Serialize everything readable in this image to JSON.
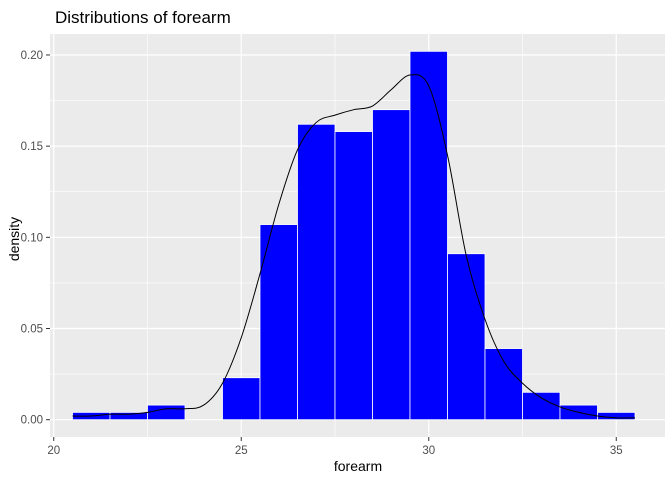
{
  "chart_data": {
    "type": "histogram",
    "title": "Distributions of forearm",
    "xlabel": "forearm",
    "ylabel": "density",
    "xlim": [
      19.9,
      36.3
    ],
    "ylim": [
      -0.0095,
      0.2115
    ],
    "xticks": [
      20,
      25,
      30,
      35
    ],
    "yticks": [
      0.0,
      0.05,
      0.1,
      0.15,
      0.2
    ],
    "ytick_labels": [
      "0.00",
      "0.05",
      "0.10",
      "0.15",
      "0.20"
    ],
    "grid": true,
    "bin_width": 1,
    "bars": [
      {
        "x0": 20.5,
        "x1": 21.5,
        "value": 0.004
      },
      {
        "x0": 21.5,
        "x1": 22.5,
        "value": 0.004
      },
      {
        "x0": 22.5,
        "x1": 23.5,
        "value": 0.008
      },
      {
        "x0": 23.5,
        "x1": 24.5,
        "value": 0.0
      },
      {
        "x0": 24.5,
        "x1": 25.5,
        "value": 0.023
      },
      {
        "x0": 25.5,
        "x1": 26.5,
        "value": 0.107
      },
      {
        "x0": 26.5,
        "x1": 27.5,
        "value": 0.162
      },
      {
        "x0": 27.5,
        "x1": 28.5,
        "value": 0.158
      },
      {
        "x0": 28.5,
        "x1": 29.5,
        "value": 0.17
      },
      {
        "x0": 29.5,
        "x1": 30.5,
        "value": 0.202
      },
      {
        "x0": 30.5,
        "x1": 31.5,
        "value": 0.091
      },
      {
        "x0": 31.5,
        "x1": 32.5,
        "value": 0.039
      },
      {
        "x0": 32.5,
        "x1": 33.5,
        "value": 0.015
      },
      {
        "x0": 33.5,
        "x1": 34.5,
        "value": 0.008
      },
      {
        "x0": 34.5,
        "x1": 35.5,
        "value": 0.004
      }
    ],
    "density_curve": {
      "x": [
        20.5,
        21.0,
        21.5,
        22.0,
        22.5,
        23.0,
        23.5,
        24.0,
        24.5,
        25.0,
        25.5,
        26.0,
        26.5,
        27.0,
        27.5,
        28.0,
        28.5,
        29.0,
        29.5,
        30.0,
        30.5,
        31.0,
        31.5,
        32.0,
        32.5,
        33.0,
        33.5,
        34.0,
        34.5,
        35.0,
        35.5
      ],
      "y": [
        0.002,
        0.002,
        0.003,
        0.003,
        0.004,
        0.006,
        0.006,
        0.008,
        0.02,
        0.045,
        0.08,
        0.118,
        0.148,
        0.163,
        0.167,
        0.17,
        0.172,
        0.181,
        0.189,
        0.183,
        0.145,
        0.09,
        0.055,
        0.032,
        0.02,
        0.012,
        0.007,
        0.004,
        0.002,
        0.001,
        0.001
      ]
    },
    "colors": {
      "bar_fill": "#0000ff",
      "bar_outline": "#ffffff",
      "panel_background": "#ebebeb",
      "grid_major": "#ffffff",
      "curve": "#000000"
    }
  }
}
